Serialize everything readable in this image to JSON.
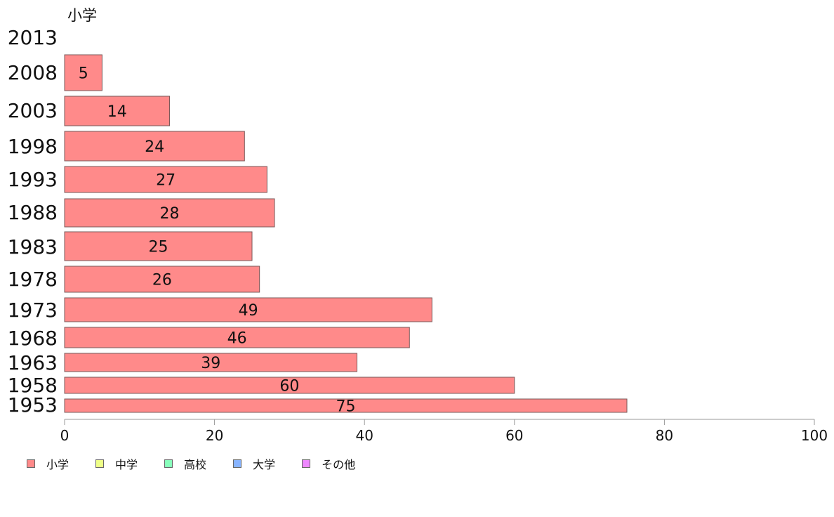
{
  "chart_data": {
    "type": "bar",
    "orientation": "horizontal",
    "title": "小学",
    "categories": [
      "2013",
      "2008",
      "2003",
      "1998",
      "1993",
      "1988",
      "1983",
      "1978",
      "1973",
      "1968",
      "1963",
      "1958",
      "1953"
    ],
    "series": [
      {
        "name": "小学",
        "values": [
          0,
          5,
          14,
          24,
          27,
          28,
          25,
          26,
          49,
          46,
          39,
          60,
          75
        ],
        "labels": [
          "",
          "5",
          "14",
          "24",
          "27",
          "28",
          "25",
          "26",
          "49",
          "46",
          "39",
          "60",
          "75"
        ]
      }
    ],
    "xlim": [
      0,
      100
    ],
    "xticks": [
      "0",
      "20",
      "40",
      "60",
      "80",
      "100"
    ],
    "grid": false,
    "legend_position": "bottom-left",
    "legend": [
      {
        "label": "小学",
        "color": "#ff8a8a"
      },
      {
        "label": "中学",
        "color": "#eeff88"
      },
      {
        "label": "高校",
        "color": "#88ffbb"
      },
      {
        "label": "大学",
        "color": "#88b4ff"
      },
      {
        "label": "その他",
        "color": "#ee88ff"
      }
    ]
  }
}
